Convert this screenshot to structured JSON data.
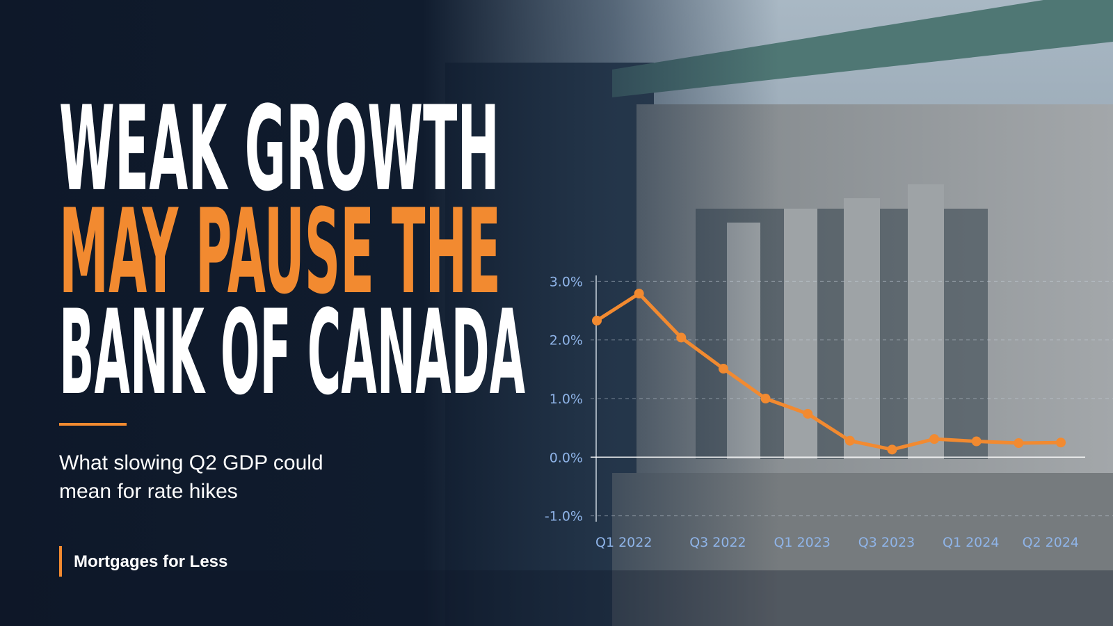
{
  "headline": [
    "WEAK GROWTH",
    "MAY PAUSE THE",
    "BANK OF CANADA"
  ],
  "subtitle": [
    "What slowing Q2 GDP could",
    "mean for rate hikes"
  ],
  "brand": "Mortgages for Less",
  "chart_data": {
    "type": "line",
    "categories": [
      "Q1 2022",
      null,
      null,
      "Q3 2022",
      null,
      "Q1 2023",
      null,
      "Q3 2023",
      null,
      "Q1 2024",
      null,
      "Q2 2024"
    ],
    "series": [
      {
        "color": "#f28a30",
        "values": [
          2.33,
          2.79,
          2.04,
          1.51,
          1.0,
          0.74,
          0.28,
          0.13,
          0.31,
          0.27,
          0.24,
          0.25
        ]
      }
    ],
    "ylim": [
      -1.1,
      3.1
    ],
    "yticks": [
      {
        "value": 3,
        "label": "3.0%"
      },
      {
        "value": 2,
        "label": "2.0%"
      },
      {
        "value": 1,
        "label": "1.0%"
      },
      {
        "value": 0,
        "label": "0.0%"
      },
      {
        "value": -1,
        "label": "-1.0%"
      }
    ],
    "grid": true
  }
}
